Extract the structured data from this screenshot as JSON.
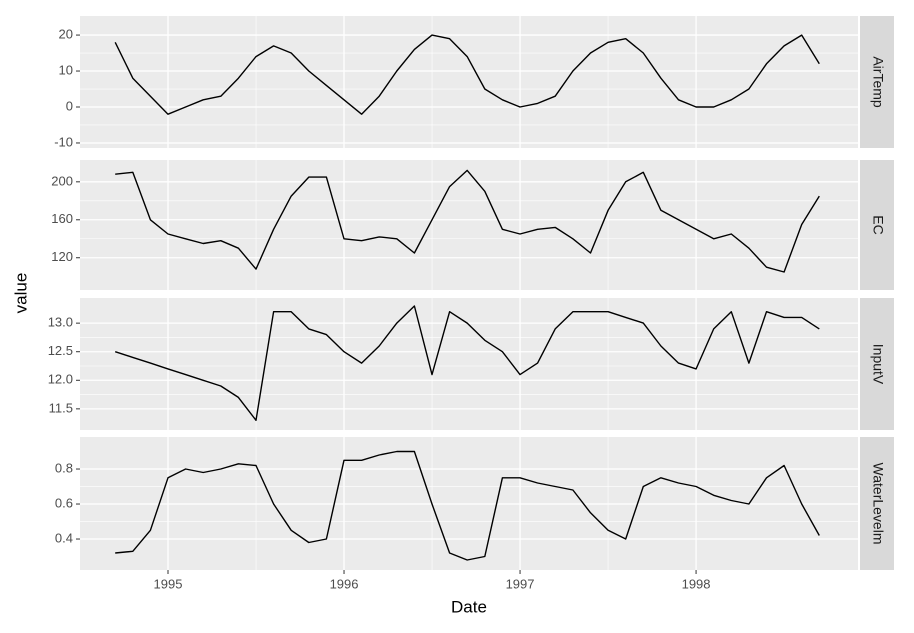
{
  "chart_data": [
    {
      "type": "line",
      "ylabel": "value",
      "x": [
        1994.7,
        1994.8,
        1994.9,
        1995.0,
        1995.1,
        1995.2,
        1995.3,
        1995.4,
        1995.5,
        1995.6,
        1995.7,
        1995.8,
        1995.9,
        1996.0,
        1996.1,
        1996.2,
        1996.3,
        1996.4,
        1996.5,
        1996.6,
        1996.7,
        1996.8,
        1996.9,
        1997.0,
        1997.1,
        1997.2,
        1997.3,
        1997.4,
        1997.5,
        1997.6,
        1997.7,
        1997.8,
        1997.9,
        1998.0,
        1998.1,
        1998.2,
        1998.3,
        1998.4,
        1998.5,
        1998.6,
        1998.7
      ],
      "series": [
        {
          "name": "AirTemp",
          "color": "#000000",
          "values": [
            18,
            8,
            3,
            -2,
            0,
            2,
            3,
            8,
            14,
            17,
            15,
            10,
            6,
            2,
            -2,
            3,
            10,
            16,
            20,
            19,
            14,
            5,
            2,
            0,
            1,
            3,
            10,
            15,
            18,
            19,
            15,
            8,
            2,
            0,
            0,
            2,
            5,
            12,
            17,
            20,
            12
          ]
        }
      ],
      "xlim": [
        1994.5,
        1998.92
      ],
      "xticks": [
        1995,
        1996,
        1997,
        1998
      ],
      "ylim": [
        -11.4,
        25.3
      ],
      "yticks": [
        -10,
        0,
        10,
        20
      ],
      "grid": true
    },
    {
      "type": "line",
      "x": [
        1994.7,
        1994.8,
        1994.9,
        1995.0,
        1995.1,
        1995.2,
        1995.3,
        1995.4,
        1995.5,
        1995.6,
        1995.7,
        1995.8,
        1995.9,
        1996.0,
        1996.1,
        1996.2,
        1996.3,
        1996.4,
        1996.5,
        1996.6,
        1996.7,
        1996.8,
        1996.9,
        1997.0,
        1997.1,
        1997.2,
        1997.3,
        1997.4,
        1997.5,
        1997.6,
        1997.7,
        1997.8,
        1997.9,
        1998.0,
        1998.1,
        1998.2,
        1998.3,
        1998.4,
        1998.5,
        1998.6,
        1998.7
      ],
      "series": [
        {
          "name": "EC",
          "color": "#000000",
          "values": [
            208,
            210,
            160,
            145,
            140,
            135,
            138,
            130,
            108,
            150,
            185,
            205,
            205,
            140,
            138,
            142,
            140,
            125,
            160,
            195,
            212,
            190,
            150,
            145,
            150,
            152,
            140,
            125,
            170,
            200,
            210,
            170,
            160,
            150,
            140,
            145,
            130,
            110,
            105,
            155,
            185
          ]
        }
      ],
      "xlim": [
        1994.5,
        1998.92
      ],
      "xticks": [
        1995,
        1996,
        1997,
        1998
      ],
      "ylim": [
        86,
        223
      ],
      "yticks": [
        120,
        160,
        200
      ],
      "grid": true
    },
    {
      "type": "line",
      "x": [
        1994.7,
        1994.8,
        1994.9,
        1995.0,
        1995.1,
        1995.2,
        1995.3,
        1995.4,
        1995.5,
        1995.6,
        1995.7,
        1995.8,
        1995.9,
        1996.0,
        1996.1,
        1996.2,
        1996.3,
        1996.4,
        1996.5,
        1996.6,
        1996.7,
        1996.8,
        1996.9,
        1997.0,
        1997.1,
        1997.2,
        1997.3,
        1997.4,
        1997.5,
        1997.6,
        1997.7,
        1997.8,
        1997.9,
        1998.0,
        1998.1,
        1998.2,
        1998.3,
        1998.4,
        1998.5,
        1998.6,
        1998.7
      ],
      "series": [
        {
          "name": "InputV",
          "color": "#000000",
          "values": [
            12.5,
            12.4,
            12.3,
            12.2,
            12.1,
            12.0,
            11.9,
            11.7,
            11.3,
            13.2,
            13.2,
            12.9,
            12.8,
            12.5,
            12.3,
            12.6,
            13.0,
            13.3,
            12.1,
            13.2,
            13.0,
            12.7,
            12.5,
            12.1,
            12.3,
            12.9,
            13.2,
            13.2,
            13.2,
            13.1,
            13.0,
            12.6,
            12.3,
            12.2,
            12.9,
            13.2,
            12.3,
            13.2,
            13.1,
            13.1,
            12.9
          ]
        }
      ],
      "xlim": [
        1994.5,
        1998.92
      ],
      "xticks": [
        1995,
        1996,
        1997,
        1998
      ],
      "ylim": [
        11.13,
        13.44
      ],
      "yticks": [
        11.5,
        {
          "value": 12,
          "label": "12.0"
        },
        12.5,
        {
          "value": 13,
          "label": "13.0"
        }
      ],
      "grid": true
    },
    {
      "type": "line",
      "xlabel": "Date",
      "x": [
        1994.7,
        1994.8,
        1994.9,
        1995.0,
        1995.1,
        1995.2,
        1995.3,
        1995.4,
        1995.5,
        1995.6,
        1995.7,
        1995.8,
        1995.9,
        1996.0,
        1996.1,
        1996.2,
        1996.3,
        1996.4,
        1996.5,
        1996.6,
        1996.7,
        1996.8,
        1996.9,
        1997.0,
        1997.1,
        1997.2,
        1997.3,
        1997.4,
        1997.5,
        1997.6,
        1997.7,
        1997.8,
        1997.9,
        1998.0,
        1998.1,
        1998.2,
        1998.3,
        1998.4,
        1998.5,
        1998.6,
        1998.7
      ],
      "series": [
        {
          "name": "WaterLevelm",
          "color": "#000000",
          "values": [
            0.32,
            0.33,
            0.45,
            0.75,
            0.8,
            0.78,
            0.8,
            0.83,
            0.82,
            0.6,
            0.45,
            0.38,
            0.4,
            0.85,
            0.85,
            0.88,
            0.9,
            0.9,
            0.6,
            0.32,
            0.28,
            0.3,
            0.75,
            0.75,
            0.72,
            0.7,
            0.68,
            0.55,
            0.45,
            0.4,
            0.7,
            0.75,
            0.72,
            0.7,
            0.65,
            0.62,
            0.6,
            0.75,
            0.82,
            0.6,
            0.42
          ]
        }
      ],
      "xlim": [
        1994.5,
        1998.92
      ],
      "xticks": [
        1995,
        1996,
        1997,
        1998
      ],
      "ylim": [
        0.223,
        0.983
      ],
      "yticks": [
        0.4,
        0.6,
        0.8
      ],
      "grid": true
    }
  ]
}
